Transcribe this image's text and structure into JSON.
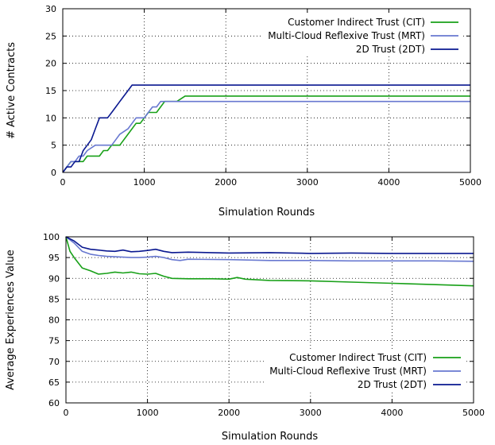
{
  "charts": [
    {
      "type": "line",
      "xlabel": "Simulation Rounds",
      "ylabel": "# Active Contracts",
      "xlim": [
        0,
        5000
      ],
      "ylim": [
        0,
        30
      ],
      "xticks": [
        0,
        1000,
        2000,
        3000,
        4000,
        5000
      ],
      "yticks": [
        0,
        5,
        10,
        15,
        20,
        25,
        30
      ],
      "grid": true,
      "legend_position": "top-right",
      "series": [
        {
          "name": "Customer Indirect Trust (CIT)",
          "color": "#18a018",
          "x": [
            0,
            50,
            100,
            200,
            250,
            300,
            400,
            450,
            500,
            550,
            600,
            650,
            700,
            800,
            900,
            950,
            1000,
            1050,
            1100,
            1150,
            1200,
            1250,
            1300,
            1400,
            1500,
            2000,
            2500,
            3000,
            3500,
            4000,
            4500,
            5000
          ],
          "y": [
            0,
            1,
            2,
            2,
            2,
            3,
            3,
            3,
            4,
            4,
            5,
            5,
            5,
            7,
            9,
            9,
            10,
            11,
            11,
            11,
            12,
            13,
            13,
            13,
            14,
            14,
            14,
            14,
            14,
            14,
            14,
            14
          ]
        },
        {
          "name": "Multi-Cloud Reflexive Trust (MRT)",
          "color": "#6878d0",
          "x": [
            0,
            50,
            100,
            150,
            200,
            250,
            300,
            400,
            500,
            550,
            600,
            650,
            700,
            800,
            900,
            950,
            1000,
            1050,
            1100,
            1150,
            1200,
            1250,
            1500,
            2000,
            2500,
            3000,
            3500,
            4000,
            4500,
            5000
          ],
          "y": [
            0,
            1,
            2,
            2,
            3,
            3,
            4,
            5,
            5,
            5,
            5,
            6,
            7,
            8,
            10,
            10,
            10,
            11,
            12,
            12,
            13,
            13,
            13,
            13,
            13,
            13,
            13,
            13,
            13,
            13
          ]
        },
        {
          "name": "2D Trust (2DT)",
          "color": "#0a1890",
          "x": [
            0,
            50,
            100,
            150,
            200,
            250,
            300,
            350,
            400,
            450,
            500,
            550,
            600,
            650,
            700,
            750,
            800,
            850,
            900,
            1000,
            1500,
            2000,
            2500,
            3000,
            3500,
            4000,
            4500,
            5000
          ],
          "y": [
            0,
            1,
            1,
            2,
            2,
            4,
            5,
            6,
            8,
            10,
            10,
            10,
            11,
            12,
            13,
            14,
            15,
            16,
            16,
            16,
            16,
            16,
            16,
            16,
            16,
            16,
            16,
            16
          ]
        }
      ]
    },
    {
      "type": "line",
      "xlabel": "Simulation Rounds",
      "ylabel": "Average Experiences Value",
      "xlim": [
        0,
        5000
      ],
      "ylim": [
        60,
        100
      ],
      "xticks": [
        0,
        1000,
        2000,
        3000,
        4000,
        5000
      ],
      "yticks": [
        60,
        65,
        70,
        75,
        80,
        85,
        90,
        95,
        100
      ],
      "grid": true,
      "legend_position": "bottom-right",
      "series": [
        {
          "name": "Customer Indirect Trust (CIT)",
          "color": "#18a018",
          "x": [
            0,
            50,
            100,
            200,
            300,
            400,
            500,
            600,
            700,
            800,
            900,
            1000,
            1100,
            1200,
            1300,
            1500,
            1800,
            2000,
            2100,
            2200,
            2500,
            3000,
            3500,
            4000,
            4500,
            5000
          ],
          "y": [
            100,
            96.5,
            95,
            92.5,
            91.8,
            91,
            91.2,
            91.5,
            91.3,
            91.5,
            91.1,
            91,
            91.2,
            90.5,
            90,
            89.9,
            89.9,
            89.8,
            90.2,
            89.8,
            89.5,
            89.4,
            89.1,
            88.8,
            88.5,
            88.2
          ]
        },
        {
          "name": "Multi-Cloud Reflexive Trust (MRT)",
          "color": "#6878d0",
          "x": [
            0,
            100,
            200,
            300,
            400,
            500,
            600,
            700,
            800,
            900,
            1000,
            1100,
            1200,
            1300,
            1400,
            1500,
            2000,
            2500,
            3000,
            3500,
            4000,
            4500,
            5000
          ],
          "y": [
            100,
            98.5,
            96.5,
            95.8,
            95.5,
            95.3,
            95.2,
            95.1,
            95,
            95,
            95.1,
            95.3,
            95,
            94.5,
            94.3,
            94.6,
            94.5,
            94.3,
            94.3,
            94.2,
            94.2,
            94.2,
            94.1
          ]
        },
        {
          "name": "2D Trust (2DT)",
          "color": "#0a1890",
          "x": [
            0,
            100,
            200,
            300,
            400,
            500,
            600,
            700,
            800,
            900,
            1000,
            1100,
            1200,
            1300,
            1500,
            2000,
            2500,
            3000,
            3500,
            4000,
            4500,
            5000
          ],
          "y": [
            100,
            99,
            97.5,
            97,
            96.8,
            96.6,
            96.5,
            96.8,
            96.4,
            96.5,
            96.7,
            97,
            96.5,
            96.2,
            96.3,
            96.1,
            96.2,
            96,
            96.1,
            96,
            96,
            96
          ]
        }
      ]
    }
  ]
}
